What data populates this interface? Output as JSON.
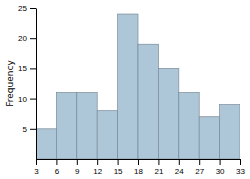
{
  "chart_data": {
    "type": "histogram",
    "ylabel": "Frequency",
    "bins": [
      3,
      6,
      9,
      12,
      15,
      18,
      21,
      24,
      27,
      30,
      33
    ],
    "values": [
      5,
      11,
      11,
      8,
      24,
      19,
      15,
      11,
      7,
      9
    ],
    "color": "#adc6d8",
    "xlim": [
      3,
      33
    ],
    "xticks": [
      3,
      6,
      9,
      12,
      15,
      18,
      21,
      24,
      27,
      30,
      33
    ],
    "ylim": [
      0,
      25
    ],
    "yticks": [
      5,
      10,
      15,
      20,
      25
    ]
  }
}
